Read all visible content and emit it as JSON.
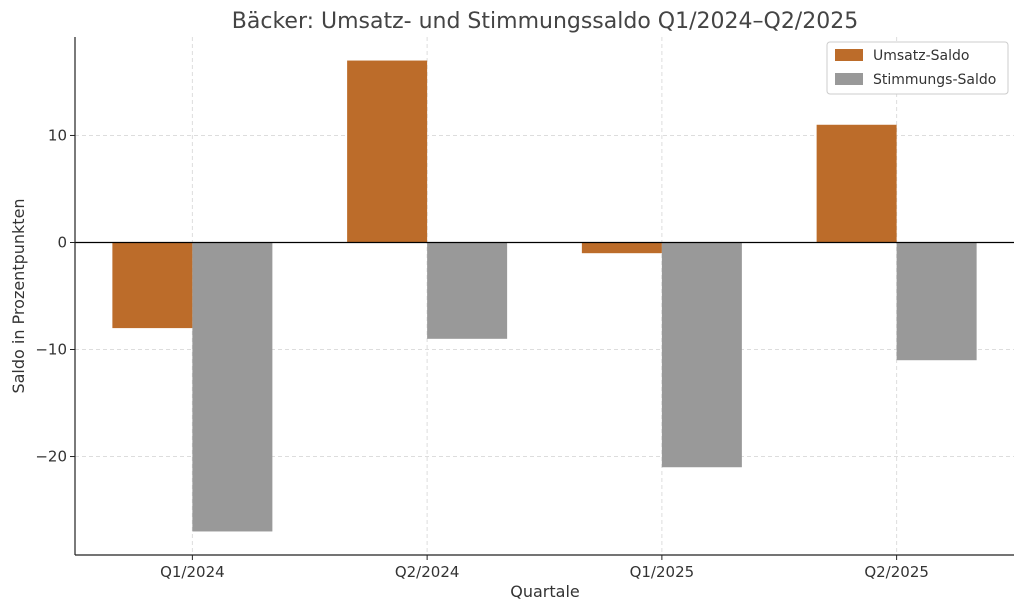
{
  "chart_data": {
    "type": "bar",
    "title": "Bäcker: Umsatz- und Stimmungssaldo Q1/2024–Q2/2025",
    "xlabel": "Quartale",
    "ylabel": "Saldo in Prozentpunkten",
    "categories": [
      "Q1/2024",
      "Q2/2024",
      "Q1/2025",
      "Q2/2025"
    ],
    "series": [
      {
        "name": "Umsatz-Saldo",
        "values": [
          -8,
          17,
          -1,
          11
        ],
        "color": "#bc6c2a"
      },
      {
        "name": "Stimmungs-Saldo",
        "values": [
          -27,
          -9,
          -21,
          -11
        ],
        "color": "#999999"
      }
    ],
    "ylim": [
      -29.2,
      19.2
    ],
    "yticks": [
      -20,
      -10,
      0,
      10
    ],
    "ytick_labels": [
      "−20",
      "−10",
      "0",
      "10"
    ],
    "grid": true,
    "legend_position": "top-right"
  }
}
